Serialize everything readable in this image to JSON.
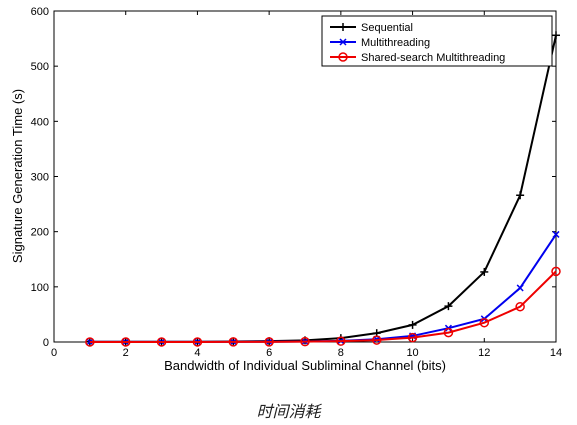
{
  "chart_data": {
    "type": "line",
    "title": "",
    "xlabel": "Bandwidth of Individual Subliminal Channel (bits)",
    "ylabel": "Signature Generation Time (s)",
    "xlim": [
      0,
      14
    ],
    "ylim": [
      0,
      600
    ],
    "xticks": [
      0,
      2,
      4,
      6,
      8,
      10,
      12,
      14
    ],
    "yticks": [
      0,
      100,
      200,
      300,
      400,
      500,
      600
    ],
    "grid": false,
    "legend_position": "top-right",
    "x": [
      1,
      2,
      3,
      4,
      5,
      6,
      7,
      8,
      9,
      10,
      11,
      12,
      13,
      14
    ],
    "series": [
      {
        "name": "Sequential",
        "color": "#000000",
        "marker": "plus",
        "values": [
          0.5,
          0.5,
          0.5,
          0.5,
          1,
          1.5,
          3,
          7,
          16,
          31,
          65,
          127,
          266,
          556
        ]
      },
      {
        "name": "Multithreading",
        "color": "#0000ee",
        "marker": "x",
        "values": [
          0.2,
          0.2,
          0.2,
          0.2,
          0.3,
          0.5,
          1,
          2,
          5,
          11,
          25,
          42,
          98,
          195
        ]
      },
      {
        "name": "Shared-search Multithreading",
        "color": "#ee0000",
        "marker": "circle",
        "values": [
          0.1,
          0.1,
          0.1,
          0.1,
          0.2,
          0.3,
          0.6,
          1.5,
          3.5,
          8,
          17,
          35,
          64,
          128
        ]
      }
    ]
  },
  "caption": "时间消耗"
}
